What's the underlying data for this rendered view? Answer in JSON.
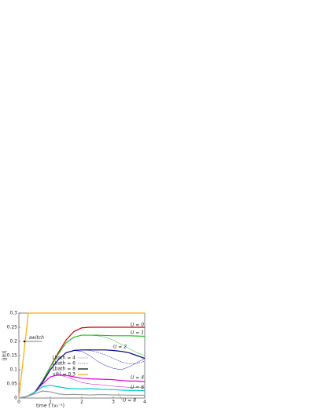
{
  "chart_data": {
    "type": "line",
    "xlabel": "time t (v₀⁻¹)",
    "ylabel": "|j(t)|",
    "xlim": [
      0,
      4
    ],
    "ylim": [
      0,
      0.3
    ],
    "xticks": [
      0,
      1,
      2,
      3,
      4
    ],
    "yticks": [
      0,
      0.05,
      0.1,
      0.15,
      0.2,
      0.25,
      0.3
    ],
    "x": [
      0,
      0.25,
      0.5,
      0.75,
      1,
      1.25,
      1.5,
      1.75,
      2,
      2.25,
      2.5,
      2.75,
      3,
      3.25,
      3.5,
      3.75,
      4
    ],
    "series": [
      {
        "color": "#cc0000",
        "style": "thick",
        "values": [
          0,
          0.005,
          0.02,
          0.06,
          0.11,
          0.16,
          0.205,
          0.235,
          0.248,
          0.25,
          0.25,
          0.25,
          0.25,
          0.25,
          0.25,
          0.25,
          0.25
        ]
      },
      {
        "color": "#22bb22",
        "style": "thin",
        "values": [
          0,
          0.005,
          0.02,
          0.06,
          0.11,
          0.155,
          0.195,
          0.215,
          0.222,
          0.222,
          0.22,
          0.215,
          0.205,
          0.19,
          0.175,
          0.16,
          0.15
        ]
      },
      {
        "color": "#22bb22",
        "style": "thick",
        "values": [
          0,
          0.005,
          0.02,
          0.06,
          0.11,
          0.155,
          0.195,
          0.215,
          0.222,
          0.222,
          0.222,
          0.221,
          0.22,
          0.22,
          0.22,
          0.219,
          0.218
        ]
      },
      {
        "color": "#2222cc",
        "style": "thin",
        "values": [
          0,
          0.005,
          0.02,
          0.055,
          0.1,
          0.135,
          0.16,
          0.168,
          0.165,
          0.15,
          0.13,
          0.115,
          0.105,
          0.1,
          0.11,
          0.125,
          0.14
        ]
      },
      {
        "color": "#2222cc",
        "style": "dashed",
        "values": [
          0,
          0.005,
          0.02,
          0.055,
          0.1,
          0.135,
          0.16,
          0.168,
          0.17,
          0.168,
          0.162,
          0.152,
          0.14,
          0.128,
          0.12,
          0.122,
          0.13
        ]
      },
      {
        "color": "#000088",
        "style": "thick",
        "values": [
          0,
          0.005,
          0.02,
          0.055,
          0.1,
          0.135,
          0.16,
          0.168,
          0.17,
          0.17,
          0.17,
          0.17,
          0.168,
          0.165,
          0.16,
          0.15,
          0.14
        ]
      },
      {
        "color": "#dd00dd",
        "style": "thin",
        "values": [
          0,
          0.005,
          0.02,
          0.05,
          0.075,
          0.082,
          0.075,
          0.065,
          0.055,
          0.05,
          0.048,
          0.045,
          0.042,
          0.04,
          0.038,
          0.037,
          0.036
        ]
      },
      {
        "color": "#dd00dd",
        "style": "thick",
        "values": [
          0,
          0.005,
          0.02,
          0.05,
          0.075,
          0.082,
          0.08,
          0.075,
          0.07,
          0.068,
          0.067,
          0.066,
          0.065,
          0.062,
          0.06,
          0.06,
          0.058
        ]
      },
      {
        "color": "#00cccc",
        "style": "thick",
        "values": [
          0,
          0.005,
          0.02,
          0.04,
          0.045,
          0.04,
          0.035,
          0.033,
          0.032,
          0.033,
          0.032,
          0.03,
          0.03,
          0.028,
          0.027,
          0.027,
          0.026
        ]
      },
      {
        "color": "#999999",
        "style": "thick",
        "values": [
          0,
          0.005,
          0.015,
          0.025,
          0.022,
          0.015,
          0.012,
          0.013,
          0.012,
          0.011,
          0.012,
          0.012,
          0.011,
          0.011,
          0.01,
          0.01,
          0.01
        ]
      }
    ],
    "bias": {
      "color": "#ffaa00",
      "x": [
        0,
        0.3,
        4
      ],
      "values": [
        0,
        0.3,
        0.3
      ]
    },
    "legend": [
      {
        "label": "Lbath = 4",
        "style": "thin",
        "color": "#999999"
      },
      {
        "label": "Lbath = 6",
        "style": "dashed",
        "color": "#333333"
      },
      {
        "label": "Lbath = 8",
        "style": "thick",
        "color": "#000000"
      },
      {
        "label": "v(t) = 0.3",
        "style": "thick",
        "color": "#ffaa00"
      }
    ],
    "annotations": [
      {
        "text": "U = 0",
        "x": 3.55,
        "y": 0.258
      },
      {
        "text": "U = 1",
        "x": 3.55,
        "y": 0.23
      },
      {
        "text": "U = 2",
        "x": 3.0,
        "y": 0.18
      },
      {
        "text": "U = 4",
        "x": 3.55,
        "y": 0.072
      },
      {
        "text": "U = 6",
        "x": 3.55,
        "y": 0.038
      },
      {
        "text": "U = 8",
        "x": 3.3,
        "y": -0.008
      },
      {
        "text": "switch",
        "x": 0.32,
        "y": 0.212
      }
    ]
  }
}
